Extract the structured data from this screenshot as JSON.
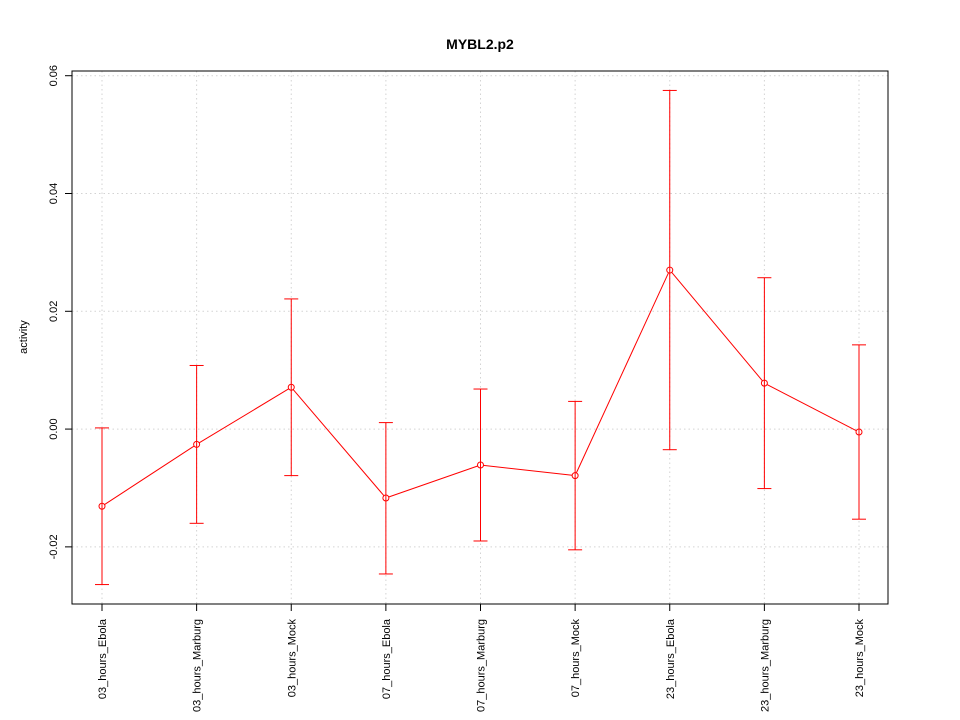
{
  "chart_data": {
    "type": "line",
    "title": "MYBL2.p2",
    "xlabel": "",
    "ylabel": "activity",
    "categories": [
      "03_hours_Ebola",
      "03_hours_Marburg",
      "03_hours_Mock",
      "07_hours_Ebola",
      "07_hours_Marburg",
      "07_hours_Mock",
      "23_hours_Ebola",
      "23_hours_Marburg",
      "23_hours_Mock"
    ],
    "series": [
      {
        "values": [
          -0.0131,
          -0.0026,
          0.0071,
          -0.0117,
          -0.0061,
          -0.0079,
          0.027,
          0.0078,
          -0.0005
        ],
        "lower": [
          -0.0264,
          -0.016,
          -0.0079,
          -0.0246,
          -0.019,
          -0.0205,
          -0.0035,
          -0.0101,
          -0.0153
        ],
        "upper": [
          0.0002,
          0.0108,
          0.0221,
          0.0011,
          0.0068,
          0.0047,
          0.0575,
          0.0257,
          0.0143
        ],
        "color": "#ff0000"
      }
    ],
    "y_ticks": [
      -0.02,
      0.0,
      0.02,
      0.04,
      0.06
    ],
    "y_tick_labels": [
      "-0.02",
      "0.00",
      "0.02",
      "0.04",
      "0.06"
    ],
    "ylim": [
      -0.0297,
      0.0608
    ],
    "grid": true,
    "grid_color": "#d3d3d3",
    "legend": "none"
  }
}
